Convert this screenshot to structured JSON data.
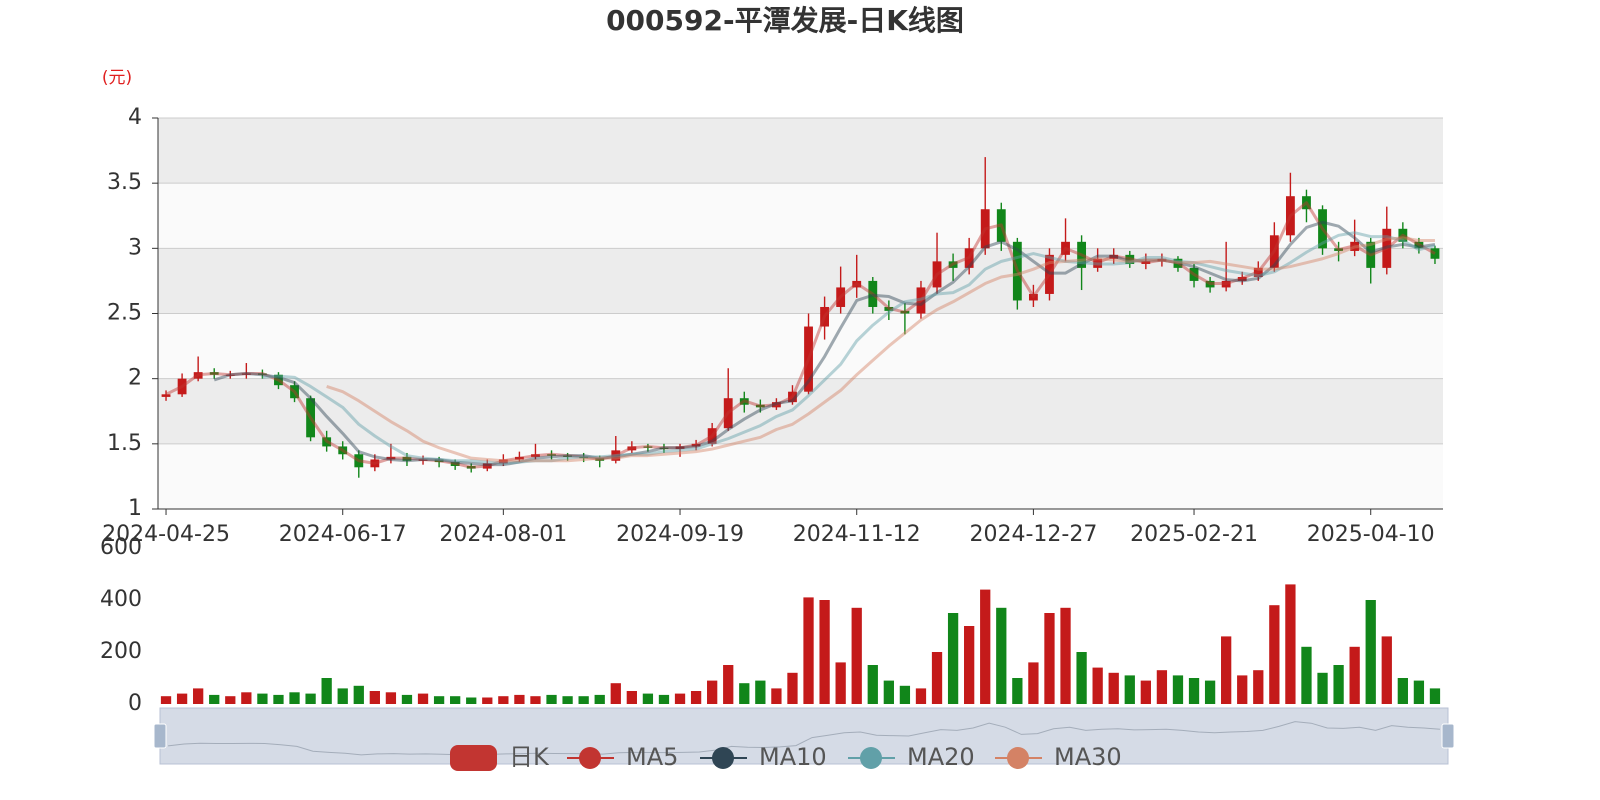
{
  "chart_data": [
    {
      "type": "candlestick",
      "title": "000592-平潭发展-日K线图",
      "unit_label": "(元)",
      "name": "日K",
      "up_color": "#c41a1a",
      "down_color": "#11861a",
      "categories": [
        "2024-04-25",
        null,
        null,
        null,
        null,
        null,
        null,
        null,
        null,
        null,
        null,
        "2024-06-17",
        null,
        null,
        null,
        null,
        null,
        null,
        null,
        null,
        null,
        "2024-08-01",
        null,
        null,
        null,
        null,
        null,
        null,
        null,
        null,
        null,
        null,
        "2024-09-19",
        null,
        null,
        null,
        null,
        null,
        null,
        null,
        null,
        null,
        null,
        "2024-11-12",
        null,
        null,
        null,
        null,
        null,
        null,
        null,
        null,
        null,
        null,
        "2024-12-27",
        null,
        null,
        null,
        null,
        null,
        null,
        null,
        null,
        null,
        "2025-02-21",
        null,
        null,
        null,
        null,
        null,
        null,
        null,
        null,
        null,
        null,
        "2025-04-10",
        null,
        null,
        null,
        null
      ],
      "open": [
        1.86,
        1.88,
        2.0,
        2.05,
        2.03,
        2.03,
        2.04,
        2.03,
        1.95,
        1.85,
        1.55,
        1.48,
        1.42,
        1.32,
        1.38,
        1.4,
        1.37,
        1.38,
        1.36,
        1.33,
        1.31,
        1.35,
        1.38,
        1.4,
        1.42,
        1.41,
        1.4,
        1.39,
        1.37,
        1.45,
        1.48,
        1.47,
        1.46,
        1.48,
        1.5,
        1.62,
        1.85,
        1.8,
        1.78,
        1.82,
        1.9,
        2.4,
        2.55,
        2.7,
        2.75,
        2.55,
        2.52,
        2.5,
        2.7,
        2.9,
        2.85,
        3.0,
        3.3,
        3.05,
        2.6,
        2.65,
        2.95,
        3.05,
        2.85,
        2.92,
        2.95,
        2.88,
        2.9,
        2.92,
        2.85,
        2.75,
        2.7,
        2.75,
        2.78,
        2.85,
        3.1,
        3.4,
        3.3,
        3.0,
        2.98,
        3.05,
        2.85,
        3.15,
        3.05,
        3.0
      ],
      "close": [
        1.88,
        2.0,
        2.05,
        2.03,
        2.03,
        2.04,
        2.03,
        1.95,
        1.85,
        1.55,
        1.48,
        1.42,
        1.32,
        1.38,
        1.4,
        1.37,
        1.38,
        1.36,
        1.33,
        1.31,
        1.35,
        1.38,
        1.4,
        1.42,
        1.41,
        1.4,
        1.39,
        1.37,
        1.45,
        1.48,
        1.47,
        1.46,
        1.48,
        1.5,
        1.62,
        1.85,
        1.8,
        1.78,
        1.82,
        1.9,
        2.4,
        2.55,
        2.7,
        2.75,
        2.55,
        2.52,
        2.5,
        2.7,
        2.9,
        2.85,
        3.0,
        3.3,
        3.05,
        2.6,
        2.65,
        2.95,
        3.05,
        2.85,
        2.92,
        2.95,
        2.88,
        2.9,
        2.92,
        2.85,
        2.75,
        2.7,
        2.75,
        2.78,
        2.85,
        3.1,
        3.4,
        3.3,
        3.0,
        2.98,
        3.05,
        2.85,
        3.15,
        3.05,
        3.0,
        2.92
      ],
      "low": [
        1.83,
        1.86,
        1.98,
        2.0,
        2.0,
        2.0,
        2.0,
        1.92,
        1.82,
        1.52,
        1.44,
        1.38,
        1.24,
        1.29,
        1.35,
        1.33,
        1.34,
        1.32,
        1.3,
        1.28,
        1.29,
        1.33,
        1.36,
        1.38,
        1.38,
        1.37,
        1.36,
        1.32,
        1.35,
        1.43,
        1.44,
        1.43,
        1.4,
        1.45,
        1.48,
        1.6,
        1.74,
        1.74,
        1.76,
        1.8,
        1.88,
        2.3,
        2.5,
        2.62,
        2.5,
        2.45,
        2.34,
        2.46,
        2.65,
        2.75,
        2.8,
        2.95,
        2.98,
        2.53,
        2.55,
        2.6,
        2.9,
        2.68,
        2.82,
        2.88,
        2.85,
        2.84,
        2.86,
        2.82,
        2.7,
        2.66,
        2.67,
        2.72,
        2.75,
        2.82,
        3.05,
        3.2,
        2.95,
        2.9,
        2.94,
        2.73,
        2.8,
        3.0,
        2.96,
        2.88
      ],
      "high": [
        1.91,
        2.04,
        2.17,
        2.08,
        2.06,
        2.12,
        2.07,
        2.05,
        1.98,
        1.87,
        1.6,
        1.52,
        1.45,
        1.42,
        1.5,
        1.43,
        1.41,
        1.4,
        1.38,
        1.35,
        1.38,
        1.42,
        1.44,
        1.5,
        1.45,
        1.43,
        1.43,
        1.41,
        1.56,
        1.52,
        1.5,
        1.5,
        1.5,
        1.53,
        1.66,
        2.08,
        1.9,
        1.84,
        1.85,
        1.95,
        2.5,
        2.63,
        2.86,
        2.95,
        2.78,
        2.6,
        2.58,
        2.75,
        3.12,
        2.96,
        3.08,
        3.7,
        3.35,
        3.08,
        2.72,
        3.0,
        3.23,
        3.1,
        3.0,
        3.0,
        2.98,
        2.96,
        2.96,
        2.94,
        2.88,
        2.78,
        3.05,
        2.82,
        2.9,
        3.2,
        3.58,
        3.45,
        3.33,
        3.05,
        3.22,
        3.08,
        3.32,
        3.2,
        3.08,
        3.02
      ],
      "series": [
        {
          "name": "MA5",
          "color": "#c23531",
          "values": [
            1.88,
            1.94,
            2.03,
            2.04,
            2.03,
            2.04,
            2.04,
            1.99,
            1.9,
            1.7,
            1.52,
            1.45,
            1.37,
            1.35,
            1.39,
            1.39,
            1.38,
            1.37,
            1.35,
            1.32,
            1.33,
            1.37,
            1.39,
            1.41,
            1.42,
            1.41,
            1.4,
            1.38,
            1.41,
            1.47,
            1.48,
            1.47,
            1.47,
            1.49,
            1.56,
            1.74,
            1.83,
            1.79,
            1.8,
            1.86,
            2.15,
            2.48,
            2.63,
            2.73,
            2.65,
            2.54,
            2.51,
            2.6,
            2.8,
            2.88,
            2.93,
            3.15,
            3.18,
            2.83,
            2.63,
            2.8,
            3.0,
            2.95,
            2.89,
            2.94,
            2.92,
            2.89,
            2.91,
            2.89,
            2.8,
            2.73,
            2.73,
            2.77,
            2.82,
            2.98,
            3.25,
            3.35,
            3.15,
            2.99,
            3.02,
            2.95,
            3.0,
            3.1,
            3.03,
            2.96
          ]
        },
        {
          "name": "MA10",
          "color": "#2f4554",
          "values": [
            null,
            null,
            null,
            1.99,
            2.03,
            2.04,
            2.03,
            2.01,
            1.97,
            1.85,
            1.71,
            1.58,
            1.44,
            1.4,
            1.38,
            1.37,
            1.38,
            1.38,
            1.36,
            1.35,
            1.34,
            1.34,
            1.36,
            1.39,
            1.4,
            1.41,
            1.41,
            1.39,
            1.4,
            1.42,
            1.44,
            1.47,
            1.47,
            1.48,
            1.52,
            1.61,
            1.69,
            1.76,
            1.81,
            1.83,
            1.98,
            2.17,
            2.39,
            2.6,
            2.64,
            2.63,
            2.58,
            2.57,
            2.66,
            2.74,
            2.86,
            3.01,
            3.05,
            2.99,
            2.9,
            2.81,
            2.81,
            2.88,
            2.94,
            2.94,
            2.9,
            2.91,
            2.91,
            2.89,
            2.86,
            2.81,
            2.76,
            2.75,
            2.77,
            2.87,
            3.03,
            3.16,
            3.2,
            3.17,
            3.08,
            2.97,
            3.01,
            3.03,
            3.01,
            3.03
          ]
        },
        {
          "name": "MA20",
          "color": "#61a0a8",
          "values": [
            null,
            null,
            null,
            null,
            null,
            null,
            2.01,
            2.02,
            2.01,
            1.94,
            1.86,
            1.78,
            1.65,
            1.56,
            1.48,
            1.41,
            1.39,
            1.38,
            1.37,
            1.37,
            1.36,
            1.35,
            1.36,
            1.37,
            1.37,
            1.39,
            1.4,
            1.4,
            1.41,
            1.42,
            1.42,
            1.44,
            1.45,
            1.46,
            1.5,
            1.54,
            1.59,
            1.64,
            1.71,
            1.76,
            1.87,
            1.99,
            2.11,
            2.29,
            2.41,
            2.51,
            2.59,
            2.61,
            2.65,
            2.66,
            2.72,
            2.84,
            2.9,
            2.93,
            2.96,
            2.93,
            2.9,
            2.89,
            2.88,
            2.88,
            2.89,
            2.93,
            2.93,
            2.9,
            2.89,
            2.86,
            2.83,
            2.81,
            2.79,
            2.82,
            2.89,
            2.97,
            3.04,
            3.1,
            3.12,
            3.09,
            3.09,
            3.06,
            2.99,
            3.02
          ]
        },
        {
          "name": "MA30",
          "color": "#d48265",
          "values": [
            null,
            null,
            null,
            null,
            null,
            null,
            null,
            null,
            null,
            null,
            1.94,
            1.9,
            1.83,
            1.75,
            1.67,
            1.6,
            1.52,
            1.47,
            1.43,
            1.39,
            1.38,
            1.37,
            1.37,
            1.37,
            1.37,
            1.37,
            1.38,
            1.39,
            1.39,
            1.41,
            1.41,
            1.42,
            1.43,
            1.44,
            1.46,
            1.49,
            1.52,
            1.55,
            1.61,
            1.65,
            1.73,
            1.82,
            1.91,
            2.03,
            2.14,
            2.25,
            2.35,
            2.45,
            2.53,
            2.59,
            2.66,
            2.73,
            2.78,
            2.8,
            2.84,
            2.89,
            2.9,
            2.91,
            2.92,
            2.91,
            2.9,
            2.91,
            2.91,
            2.89,
            2.89,
            2.9,
            2.88,
            2.86,
            2.84,
            2.84,
            2.86,
            2.89,
            2.92,
            2.96,
            3.01,
            3.03,
            3.07,
            3.08,
            3.06,
            3.06
          ]
        }
      ],
      "ylim": [
        1,
        4
      ],
      "yticks": [
        1,
        1.5,
        2,
        2.5,
        3,
        3.5,
        4
      ],
      "grid": true
    },
    {
      "type": "bar",
      "values": [
        30,
        40,
        60,
        35,
        30,
        45,
        40,
        35,
        45,
        40,
        100,
        60,
        70,
        50,
        45,
        35,
        40,
        30,
        30,
        25,
        25,
        30,
        35,
        30,
        35,
        30,
        30,
        35,
        80,
        50,
        40,
        35,
        40,
        50,
        90,
        150,
        80,
        90,
        60,
        120,
        410,
        400,
        160,
        370,
        150,
        90,
        70,
        60,
        200,
        350,
        300,
        440,
        370,
        100,
        160,
        350,
        370,
        200,
        140,
        120,
        110,
        90,
        130,
        110,
        100,
        90,
        260,
        110,
        130,
        380,
        460,
        220,
        120,
        150,
        220,
        400,
        260,
        100,
        90,
        60
      ],
      "ylim": [
        0,
        600
      ],
      "yticks": [
        0,
        200,
        400,
        600
      ]
    }
  ]
}
